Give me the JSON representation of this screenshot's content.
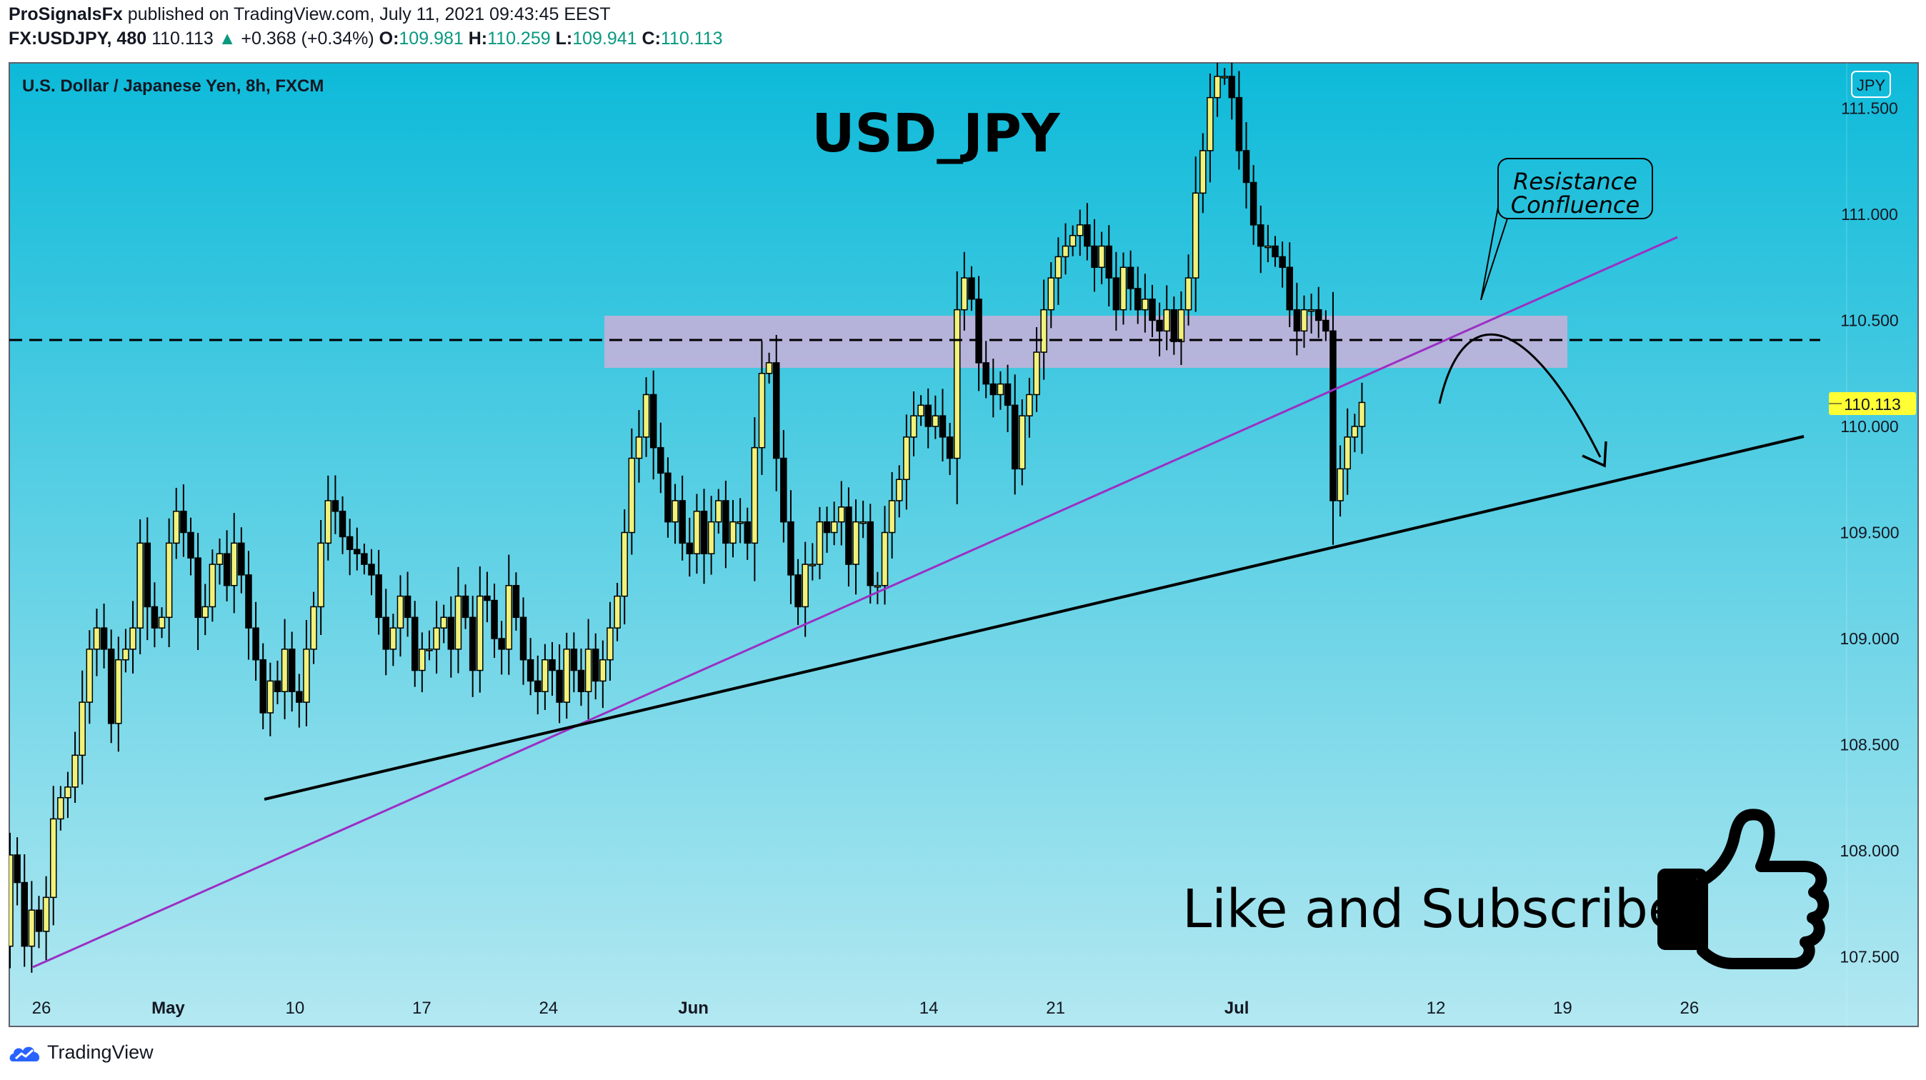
{
  "header": {
    "author": "ProSignalsFx",
    "published_text": " published on TradingView.com, July 11, 2021 09:43:45 EEST",
    "symbol": "FX:USDJPY, 480",
    "last": "110.113",
    "change": "+0.368 (+0.34%)",
    "o_label": "O:",
    "o_value": "109.981",
    "h_label": "H:",
    "h_value": "110.259",
    "l_label": "L:",
    "l_value": "109.941",
    "c_label": "C:",
    "c_value": "110.113"
  },
  "footer": {
    "brand": "TradingView"
  },
  "colors": {
    "bg_top": "#0dbad9",
    "bg_bottom": "#b3e8f1",
    "candle_up": "#f2f27a",
    "candle_down": "#000000",
    "zone": "#c6b0d8",
    "purple_line": "#9b2fc4",
    "trend_line": "#000000",
    "price_tag": "#ffff33"
  },
  "chart_data": {
    "type": "candlestick",
    "title": "USD_JPY",
    "subtitle": "U.S. Dollar / Japanese Yen, 8h, FXCM",
    "currency_badge": "JPY",
    "current_price": "110.113",
    "ylim": [
      107.3,
      111.75
    ],
    "y_ticks": [
      "111.500",
      "111.000",
      "110.500",
      "110.000",
      "109.500",
      "109.000",
      "108.500",
      "108.000",
      "107.500"
    ],
    "x_ticks": [
      "26",
      "May",
      "10",
      "17",
      "24",
      "Jun",
      "14",
      "21",
      "Jul",
      "12",
      "19",
      "26"
    ],
    "x_tick_dates": [
      "2021-04-26",
      "2021-05-03",
      "2021-05-10",
      "2021-05-17",
      "2021-05-24",
      "2021-06-01",
      "2021-06-14",
      "2021-06-21",
      "2021-07-01",
      "2021-07-12",
      "2021-07-19",
      "2021-07-26"
    ],
    "candles_close": [
      107.98,
      107.85,
      107.55,
      107.72,
      107.62,
      107.78,
      108.15,
      108.25,
      108.3,
      108.45,
      108.7,
      108.95,
      109.05,
      108.95,
      108.6,
      108.9,
      108.95,
      109.05,
      109.45,
      109.15,
      109.05,
      109.1,
      109.45,
      109.6,
      109.5,
      109.38,
      109.1,
      109.15,
      109.35,
      109.4,
      109.25,
      109.45,
      109.3,
      109.05,
      108.9,
      108.65,
      108.8,
      108.75,
      108.95,
      108.75,
      108.7,
      108.95,
      109.15,
      109.45,
      109.65,
      109.6,
      109.48,
      109.42,
      109.4,
      109.35,
      109.3,
      109.1,
      108.95,
      109.05,
      109.2,
      109.1,
      108.85,
      108.95,
      108.95,
      109.05,
      109.1,
      108.95,
      109.2,
      109.1,
      108.85,
      109.2,
      109.18,
      109.0,
      108.95,
      109.25,
      109.1,
      108.9,
      108.8,
      108.75,
      108.9,
      108.85,
      108.7,
      108.95,
      108.85,
      108.75,
      108.95,
      108.8,
      108.9,
      109.05,
      109.2,
      109.5,
      109.85,
      109.95,
      110.15,
      109.9,
      109.78,
      109.55,
      109.65,
      109.45,
      109.4,
      109.6,
      109.4,
      109.55,
      109.65,
      109.45,
      109.55,
      109.55,
      109.45,
      109.9,
      110.25,
      110.3,
      109.85,
      109.55,
      109.3,
      109.15,
      109.35,
      109.35,
      109.55,
      109.5,
      109.55,
      109.62,
      109.35,
      109.55,
      109.55,
      109.25,
      109.25,
      109.5,
      109.65,
      109.75,
      109.95,
      110.05,
      110.1,
      110.0,
      110.05,
      109.95,
      109.85,
      110.55,
      110.7,
      110.6,
      110.3,
      110.2,
      110.15,
      110.2,
      110.1,
      109.8,
      110.05,
      110.15,
      110.35,
      110.55,
      110.7,
      110.8,
      110.85,
      110.9,
      110.95,
      110.85,
      110.75,
      110.85,
      110.7,
      110.55,
      110.75,
      110.65,
      110.55,
      110.6,
      110.5,
      110.45,
      110.55,
      110.4,
      110.55,
      110.7,
      111.1,
      111.3,
      111.55,
      111.65,
      111.65,
      111.55,
      111.3,
      111.15,
      110.95,
      110.85,
      110.85,
      110.8,
      110.75,
      110.55,
      110.45,
      110.55,
      110.55,
      110.5,
      110.45,
      109.65,
      109.8,
      109.95,
      110.0,
      110.113
    ],
    "annotations": [
      {
        "type": "text",
        "text": "Resistance\nConfluence"
      },
      {
        "type": "text",
        "text": "Like and Subscribe"
      }
    ]
  }
}
